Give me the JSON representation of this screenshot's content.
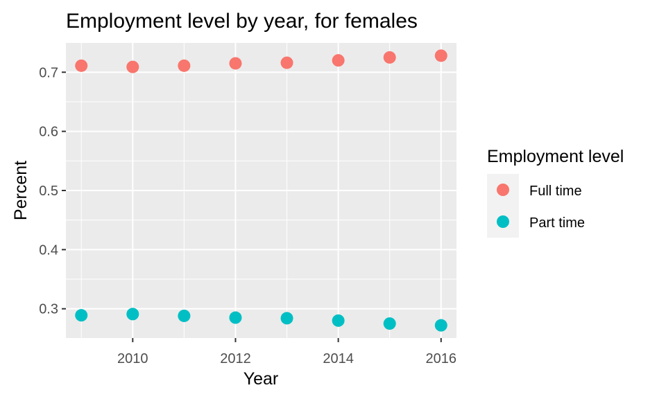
{
  "chart_data": {
    "type": "scatter",
    "title": "Employment level by year, for females",
    "xlabel": "Year",
    "ylabel": "Percent",
    "x": [
      2009,
      2010,
      2011,
      2012,
      2013,
      2014,
      2015,
      2016
    ],
    "series": [
      {
        "name": "Full time",
        "color": "#F8766D",
        "values": [
          0.711,
          0.709,
          0.711,
          0.715,
          0.716,
          0.72,
          0.725,
          0.728
        ]
      },
      {
        "name": "Part time",
        "color": "#00BFC4",
        "values": [
          0.289,
          0.291,
          0.288,
          0.285,
          0.284,
          0.28,
          0.275,
          0.272
        ]
      }
    ],
    "xlim": [
      2008.7,
      2016.3
    ],
    "ylim": [
      0.2505,
      0.7495
    ],
    "xticks": [
      2010,
      2012,
      2014,
      2016
    ],
    "yticks": [
      0.3,
      0.4,
      0.5,
      0.6,
      0.7
    ],
    "xtick_labels": [
      "2010",
      "2012",
      "2014",
      "2016"
    ],
    "ytick_labels": [
      "0.3",
      "0.4",
      "0.5",
      "0.6",
      "0.7"
    ],
    "legend": {
      "title": "Employment level",
      "position": "right"
    },
    "grid": true,
    "panel_background": "#EBEBEB"
  }
}
